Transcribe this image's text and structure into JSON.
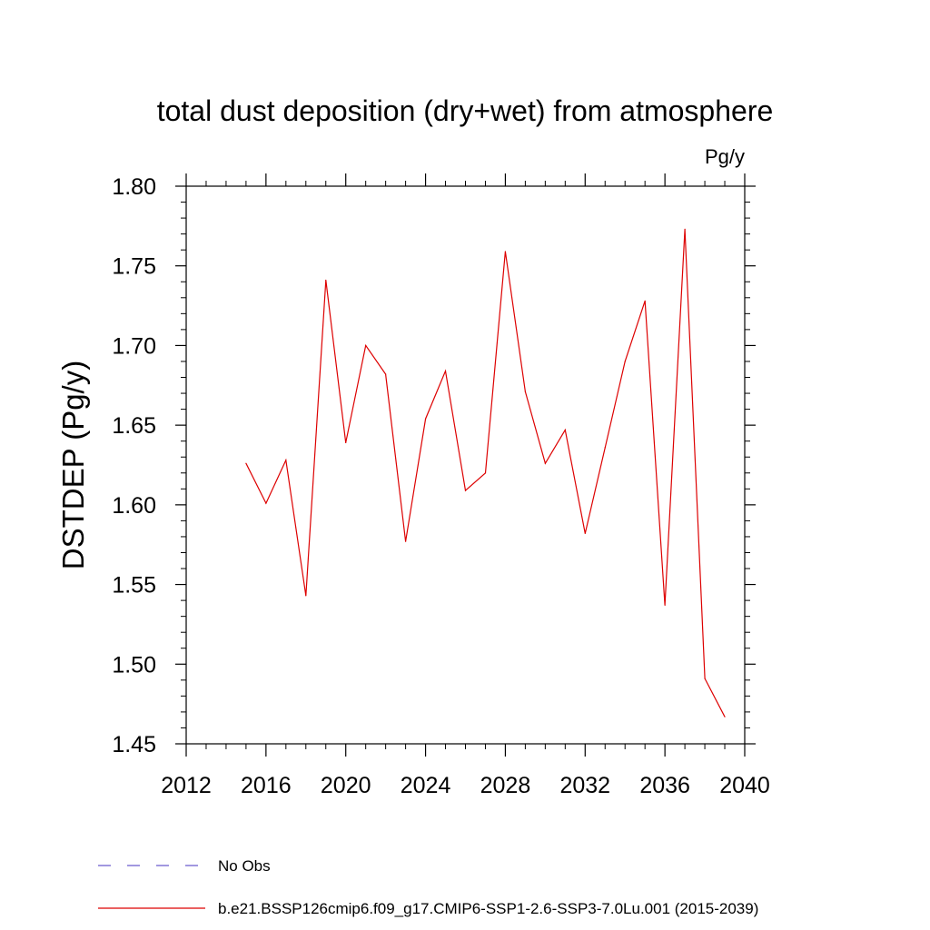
{
  "chart_data": {
    "type": "line",
    "title": "total dust deposition (dry+wet) from atmosphere",
    "units": "Pg/y",
    "ylabel": "DSTDEP  (Pg/y)",
    "xlabel": "",
    "xlim": [
      2012,
      2040
    ],
    "ylim": [
      1.45,
      1.8
    ],
    "x_ticks": [
      2012,
      2016,
      2020,
      2024,
      2028,
      2032,
      2036,
      2040
    ],
    "y_ticks": [
      1.45,
      1.5,
      1.55,
      1.6,
      1.65,
      1.7,
      1.75,
      1.8
    ],
    "y_tick_labels": [
      "1.45",
      "1.50",
      "1.55",
      "1.60",
      "1.65",
      "1.70",
      "1.75",
      "1.80"
    ],
    "grid": false,
    "series": [
      {
        "name": "b.e21.BSSP126cmip6.f09_g17.CMIP6-SSP1-2.6-SSP3-7.0Lu.001 (2015-2039)",
        "color": "#dd0000",
        "x": [
          2015,
          2016,
          2017,
          2018,
          2019,
          2020,
          2021,
          2022,
          2023,
          2024,
          2025,
          2026,
          2027,
          2028,
          2029,
          2030,
          2031,
          2032,
          2033,
          2034,
          2035,
          2036,
          2037,
          2038,
          2039
        ],
        "y": [
          1.626,
          1.601,
          1.628,
          1.543,
          1.741,
          1.639,
          1.7,
          1.682,
          1.577,
          1.654,
          1.684,
          1.609,
          1.62,
          1.759,
          1.671,
          1.626,
          1.647,
          1.582,
          1.636,
          1.69,
          1.728,
          1.537,
          1.773,
          1.491,
          1.467
        ]
      }
    ],
    "legend": [
      {
        "label": "No Obs",
        "color": "#6a5acd",
        "style": "dashed"
      },
      {
        "label": "b.e21.BSSP126cmip6.f09_g17.CMIP6-SSP1-2.6-SSP3-7.0Lu.001 (2015-2039)",
        "color": "#dd0000",
        "style": "solid"
      }
    ],
    "legend_position": "bottom"
  }
}
